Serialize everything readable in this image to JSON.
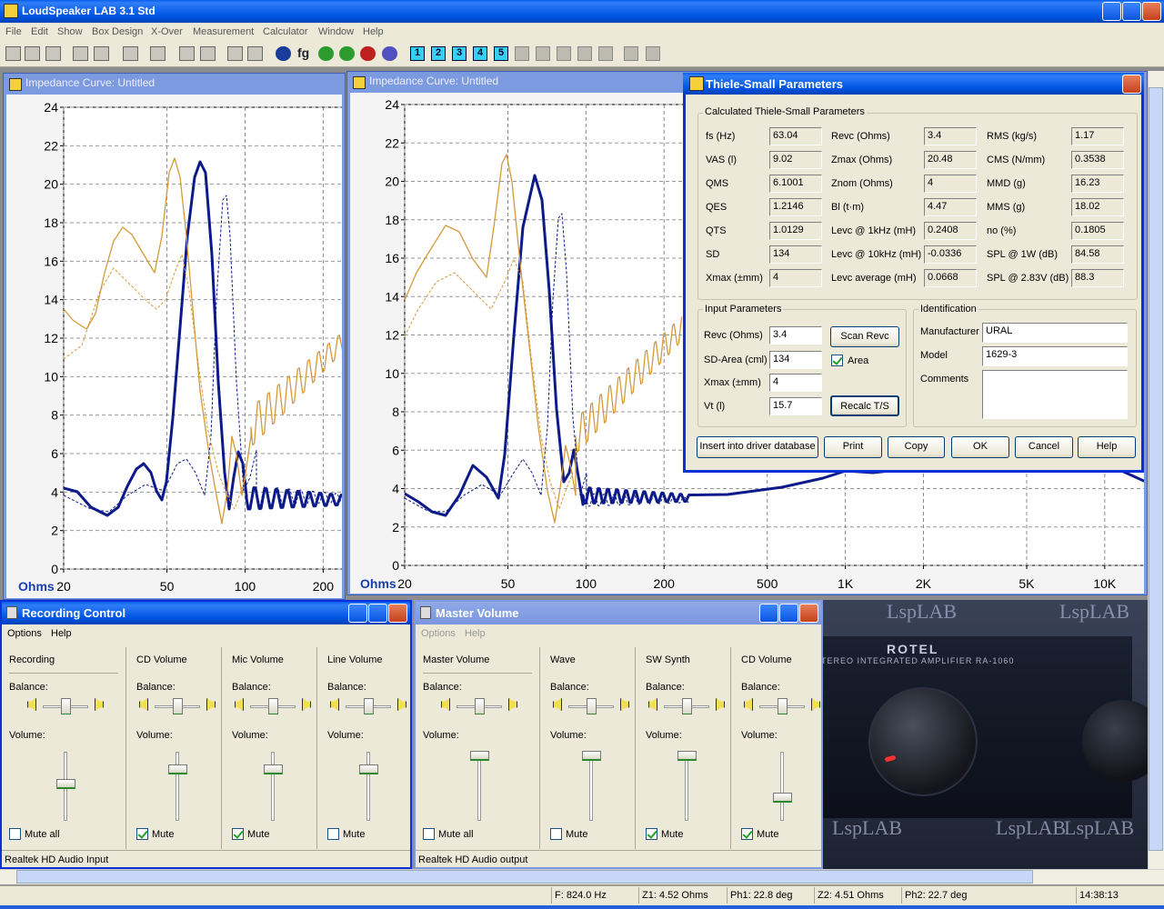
{
  "app": {
    "title": "LoudSpeaker LAB 3.1 Std",
    "menu": [
      "File",
      "Edit",
      "Show",
      "Box Design",
      "X-Over",
      "Measurement",
      "Calculator",
      "Window",
      "Help"
    ],
    "toolbar": [
      "fg",
      "1",
      "2",
      "3",
      "4",
      "5"
    ]
  },
  "plots": [
    {
      "title": "Impedance Curve: Untitled",
      "y_unit": "Ohms",
      "log_x": true,
      "grid": true,
      "xlim": [
        20,
        240
      ],
      "ylim": [
        0,
        24
      ],
      "yticks": [
        0,
        2,
        4,
        6,
        8,
        10,
        12,
        14,
        16,
        18,
        20,
        22,
        24
      ],
      "xticks": [
        20,
        50,
        100,
        200
      ]
    },
    {
      "title": "Impedance Curve: Untitled",
      "y_unit": "Ohms",
      "log_x": true,
      "grid": true,
      "xlim": [
        20,
        14400
      ],
      "ylim": [
        0,
        24
      ],
      "yticks": [
        0,
        2,
        4,
        6,
        8,
        10,
        12,
        14,
        16,
        18,
        20,
        22,
        24
      ],
      "xticks": [
        20,
        50,
        100,
        200,
        500,
        {
          "value": 1000,
          "label": "1K"
        },
        {
          "value": 2000,
          "label": "2K"
        },
        {
          "value": 5000,
          "label": "5K"
        },
        {
          "value": 10000,
          "label": "10K"
        }
      ]
    }
  ],
  "ts_dialog": {
    "title": "Thiele-Small Parameters",
    "calculated": {
      "heading": "Calculated Thiele-Small Parameters",
      "fields": [
        [
          "fs (Hz)",
          "63.04"
        ],
        [
          "VAS (l)",
          "9.02"
        ],
        [
          "QMS",
          "6.1001"
        ],
        [
          "QES",
          "1.2146"
        ],
        [
          "QTS",
          "1.0129"
        ],
        [
          "SD",
          "134"
        ],
        [
          "Xmax (±mm)",
          "4"
        ],
        [
          "Revc (Ohms)",
          "3.4"
        ],
        [
          "Zmax (Ohms)",
          "20.48"
        ],
        [
          "Znom (Ohms)",
          "4"
        ],
        [
          "Bl (t·m)",
          "4.47"
        ],
        [
          "Levc @ 1kHz (mH)",
          "0.2408"
        ],
        [
          "Levc @ 10kHz (mH)",
          "-0.0336"
        ],
        [
          "Levc average (mH)",
          "0.0668"
        ],
        [
          "RMS (kg/s)",
          "1.17"
        ],
        [
          "CMS (N/mm)",
          "0.3538"
        ],
        [
          "MMD (g)",
          "16.23"
        ],
        [
          "MMS (g)",
          "18.02"
        ],
        [
          "no (%)",
          "0.1805"
        ],
        [
          "SPL @ 1W (dB)",
          "84.58"
        ],
        [
          "SPL @ 2.83V (dB)",
          "88.3"
        ]
      ]
    },
    "input": {
      "heading": "Input Parameters",
      "fields": [
        [
          "Revc (Ohms)",
          "3.4"
        ],
        [
          "SD-Area (cml)",
          "134"
        ],
        [
          "Xmax (±mm)",
          "4"
        ],
        [
          "Vt (l)",
          "15.7"
        ]
      ],
      "scan": "Scan Revc",
      "area": "Area",
      "area_checked": true,
      "recalc": "Recalc T/S"
    },
    "identification": {
      "heading": "Identification",
      "fields": [
        [
          "Manufacturer",
          "URAL"
        ],
        [
          "Model",
          "1629-3"
        ]
      ],
      "comments_label": "Comments"
    },
    "buttons": [
      "Insert into driver database",
      "Print",
      "Copy",
      "OK",
      "Cancel",
      "Help"
    ]
  },
  "mixers": [
    {
      "title": "Recording Control",
      "menu": [
        "Options",
        "Help"
      ],
      "balance_label": "Balance:",
      "volume_label": "Volume:",
      "channels": [
        {
          "name": "Recording",
          "mute": "Mute all",
          "muted": false
        },
        {
          "name": "CD Volume",
          "mute": "Mute",
          "muted": true
        },
        {
          "name": "Mic Volume",
          "mute": "Mute",
          "muted": true
        },
        {
          "name": "Line Volume",
          "mute": "Mute",
          "muted": false
        }
      ],
      "device": "Realtek HD Audio Input"
    },
    {
      "title": "Master Volume",
      "menu": [
        "Options",
        "Help"
      ],
      "balance_label": "Balance:",
      "volume_label": "Volume:",
      "channels": [
        {
          "name": "Master Volume",
          "mute": "Mute all",
          "muted": false
        },
        {
          "name": "Wave",
          "mute": "Mute",
          "muted": false
        },
        {
          "name": "SW Synth",
          "mute": "Mute",
          "muted": true
        },
        {
          "name": "CD Volume",
          "mute": "Mute",
          "muted": true
        }
      ],
      "device": "Realtek HD Audio output"
    }
  ],
  "wallpaper": {
    "brand": "ROTEL",
    "model": "TEREO INTEGRATED AMPLIFIER RA-1060",
    "watermark": "LspLAB"
  },
  "status": [
    "F: 824.0 Hz",
    "Z1: 4.52 Ohms",
    "Ph1: 22.8 deg",
    "Z2: 4.51 Ohms",
    "Ph2: 22.7 deg",
    "14:38:13"
  ]
}
